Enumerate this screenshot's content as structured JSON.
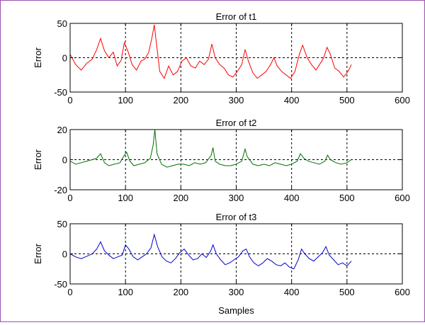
{
  "window": {
    "border_color": "#a050b0",
    "background": "#ffffff"
  },
  "chart_data": [
    {
      "type": "line",
      "title": "Error of t1",
      "ylabel": "Error",
      "xlabel": "",
      "xlim": [
        0,
        600
      ],
      "ylim": [
        -50,
        50
      ],
      "xticks": [
        "0",
        "100",
        "200",
        "300",
        "400",
        "500",
        "600"
      ],
      "yticks": [
        "50",
        "0",
        "-50"
      ],
      "grid": true,
      "series": [
        {
          "color": "#ff0000",
          "x": [
            0,
            10,
            20,
            30,
            40,
            48,
            55,
            62,
            70,
            78,
            85,
            92,
            98,
            105,
            112,
            120,
            128,
            135,
            142,
            148,
            152,
            156,
            162,
            170,
            178,
            186,
            194,
            202,
            210,
            218,
            226,
            234,
            242,
            250,
            256,
            262,
            270,
            278,
            286,
            294,
            302,
            310,
            316,
            322,
            330,
            338,
            346,
            354,
            362,
            368,
            374,
            382,
            390,
            398,
            406,
            414,
            420,
            428,
            436,
            444,
            452,
            458,
            464,
            470,
            478,
            486,
            494,
            502,
            508
          ],
          "y": [
            5,
            -10,
            -18,
            -8,
            -2,
            12,
            28,
            10,
            0,
            8,
            -12,
            -4,
            22,
            8,
            -10,
            -18,
            -5,
            -2,
            8,
            30,
            48,
            20,
            -20,
            -30,
            -12,
            -25,
            -20,
            -5,
            0,
            -12,
            -15,
            -5,
            -10,
            -2,
            20,
            0,
            -10,
            -15,
            -25,
            -28,
            -20,
            -10,
            12,
            -5,
            -22,
            -30,
            -25,
            -20,
            -10,
            0,
            -12,
            -20,
            -25,
            -30,
            -20,
            5,
            18,
            0,
            -10,
            -18,
            -8,
            0,
            15,
            5,
            -15,
            -20,
            -28,
            -20,
            -10
          ]
        }
      ]
    },
    {
      "type": "line",
      "title": "Error of t2",
      "ylabel": "Error",
      "xlabel": "",
      "xlim": [
        0,
        600
      ],
      "ylim": [
        -20,
        20
      ],
      "xticks": [
        "0",
        "100",
        "200",
        "300",
        "400",
        "500",
        "600"
      ],
      "yticks": [
        "20",
        "0",
        "-20"
      ],
      "grid": true,
      "series": [
        {
          "color": "#007000",
          "x": [
            0,
            10,
            20,
            30,
            40,
            48,
            55,
            62,
            70,
            80,
            90,
            98,
            102,
            108,
            115,
            125,
            135,
            145,
            150,
            153,
            157,
            165,
            175,
            185,
            195,
            205,
            215,
            225,
            235,
            245,
            255,
            258,
            262,
            270,
            280,
            290,
            300,
            310,
            316,
            320,
            330,
            340,
            350,
            360,
            370,
            380,
            390,
            400,
            410,
            416,
            422,
            430,
            440,
            450,
            460,
            465,
            470,
            480,
            490,
            500,
            508
          ],
          "y": [
            -1,
            -3,
            -2,
            -1,
            0,
            1,
            4,
            -2,
            -4,
            -3,
            -2,
            3,
            5,
            -1,
            -4,
            -3,
            -2,
            1,
            10,
            20,
            4,
            -3,
            -5,
            -4,
            -3,
            -3,
            -4,
            -2,
            -3,
            -2,
            3,
            8,
            -1,
            -3,
            -4,
            -4,
            -3,
            -1,
            7,
            2,
            -3,
            -4,
            -3,
            -4,
            -2,
            -3,
            -4,
            -3,
            -1,
            4,
            1,
            -1,
            -2,
            -3,
            -1,
            3,
            0,
            -2,
            -3,
            -2,
            0
          ]
        }
      ]
    },
    {
      "type": "line",
      "title": "Error of t3",
      "ylabel": "Error",
      "xlabel": "Samples",
      "xlim": [
        0,
        600
      ],
      "ylim": [
        -50,
        50
      ],
      "xticks": [
        "0",
        "100",
        "200",
        "300",
        "400",
        "500",
        "600"
      ],
      "yticks": [
        "50",
        "0",
        "-50"
      ],
      "grid": true,
      "series": [
        {
          "color": "#0000cc",
          "x": [
            0,
            10,
            20,
            30,
            40,
            48,
            55,
            62,
            70,
            78,
            86,
            94,
            100,
            106,
            114,
            122,
            130,
            138,
            146,
            152,
            158,
            166,
            174,
            182,
            190,
            198,
            206,
            214,
            222,
            230,
            238,
            246,
            254,
            258,
            264,
            272,
            280,
            288,
            296,
            304,
            312,
            318,
            324,
            332,
            340,
            348,
            356,
            364,
            372,
            380,
            388,
            396,
            404,
            412,
            418,
            424,
            432,
            440,
            448,
            456,
            462,
            468,
            476,
            484,
            492,
            500,
            508
          ],
          "y": [
            0,
            -5,
            -8,
            -4,
            0,
            8,
            20,
            5,
            -2,
            -8,
            -5,
            -2,
            15,
            8,
            -5,
            -10,
            -5,
            0,
            10,
            32,
            12,
            -5,
            -12,
            -15,
            -8,
            2,
            8,
            -2,
            -10,
            -8,
            0,
            -6,
            5,
            15,
            0,
            -10,
            -18,
            -15,
            -10,
            -5,
            5,
            8,
            -5,
            -15,
            -20,
            -15,
            -8,
            -12,
            -18,
            -20,
            -15,
            -22,
            -25,
            -10,
            8,
            0,
            -8,
            -12,
            -5,
            2,
            12,
            -2,
            -10,
            -18,
            -15,
            -20,
            -12
          ]
        }
      ]
    }
  ]
}
